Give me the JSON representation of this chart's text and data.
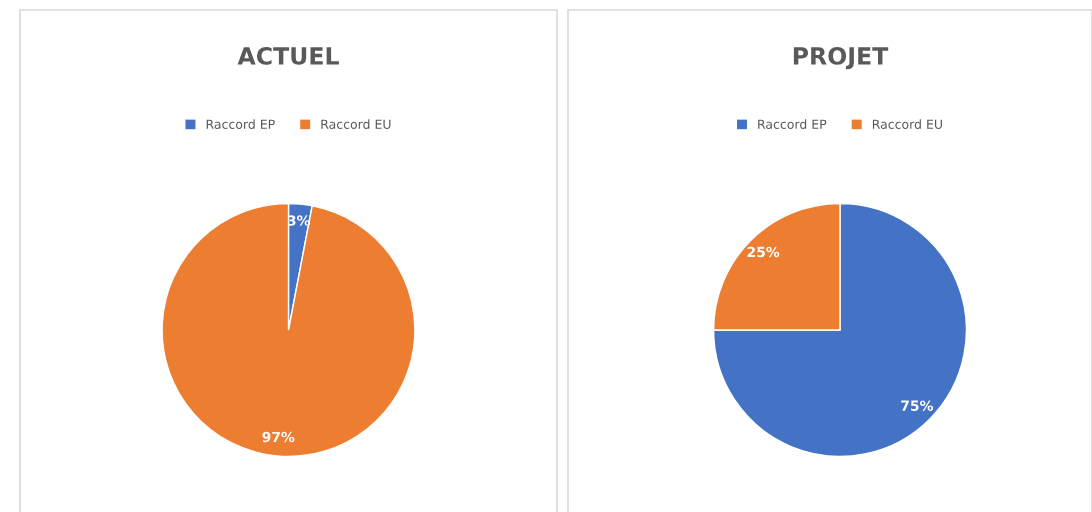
{
  "chart_data": [
    {
      "type": "pie",
      "title": "ACTUEL",
      "categories": [
        "Raccord EP",
        "Raccord EU"
      ],
      "values": [
        3,
        97
      ],
      "value_labels": [
        "3%",
        "97%"
      ],
      "colors": [
        "#4472c4",
        "#ed7d31"
      ],
      "legend": "top"
    },
    {
      "type": "pie",
      "title": "PROJET",
      "categories": [
        "Raccord EP",
        "Raccord EU"
      ],
      "values": [
        75,
        25
      ],
      "value_labels": [
        "75%",
        "25%"
      ],
      "colors": [
        "#4472c4",
        "#ed7d31"
      ],
      "legend": "top"
    }
  ]
}
